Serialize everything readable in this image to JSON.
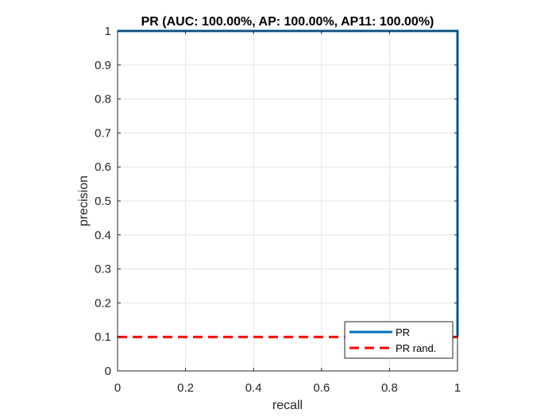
{
  "chart_data": {
    "type": "line",
    "title": "PR (AUC: 100.00%, AP: 100.00%, AP11: 100.00%)",
    "xlabel": "recall",
    "ylabel": "precision",
    "xlim": [
      0,
      1
    ],
    "ylim": [
      0,
      1
    ],
    "xticks": [
      0,
      0.2,
      0.4,
      0.6,
      0.8,
      1
    ],
    "xtick_labels": [
      "0",
      "0.2",
      "0.4",
      "0.6",
      "0.8",
      "1"
    ],
    "yticks": [
      0,
      0.1,
      0.2,
      0.3,
      0.4,
      0.5,
      0.6,
      0.7,
      0.8,
      0.9,
      1
    ],
    "ytick_labels": [
      "0",
      "0.1",
      "0.2",
      "0.3",
      "0.4",
      "0.5",
      "0.6",
      "0.7",
      "0.8",
      "0.9",
      "1"
    ],
    "grid": true,
    "legend_position": "bottom-right",
    "series": [
      {
        "name": "PR",
        "color": "#0072BD",
        "style": "solid",
        "x": [
          0,
          1,
          1
        ],
        "y": [
          1,
          1,
          0.1
        ]
      },
      {
        "name": "PR rand.",
        "color": "#FF0000",
        "style": "dashed",
        "x": [
          0,
          1
        ],
        "y": [
          0.1,
          0.1
        ]
      }
    ]
  }
}
